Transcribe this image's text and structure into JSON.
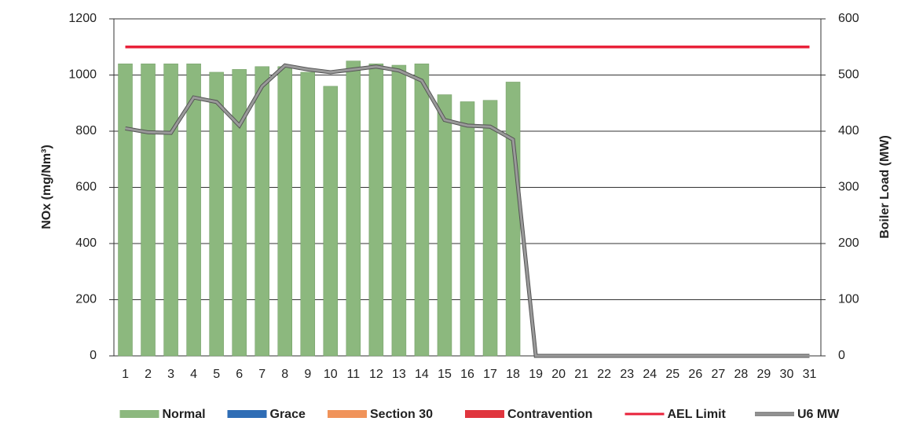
{
  "chart_data": {
    "type": "bar",
    "categories": [
      "1",
      "2",
      "3",
      "4",
      "5",
      "6",
      "7",
      "8",
      "9",
      "10",
      "11",
      "12",
      "13",
      "14",
      "15",
      "16",
      "17",
      "18",
      "19",
      "20",
      "21",
      "22",
      "23",
      "24",
      "25",
      "26",
      "27",
      "28",
      "29",
      "30",
      "31"
    ],
    "y_label": "NOx (mg/Nm³)",
    "y2_label": "Boiler Load (MW)",
    "ylim": [
      0,
      1200
    ],
    "yticks": [
      0,
      200,
      400,
      600,
      800,
      1000,
      1200
    ],
    "y2lim": [
      0,
      600
    ],
    "y2ticks": [
      0,
      100,
      200,
      300,
      400,
      500,
      600
    ],
    "grid": true,
    "legend": "bottom",
    "series": [
      {
        "name": "Normal",
        "type": "bar",
        "color": "#8cb87e",
        "values": [
          1040,
          1040,
          1040,
          1040,
          1010,
          1020,
          1030,
          1030,
          1010,
          960,
          1050,
          1040,
          1035,
          1040,
          930,
          905,
          910,
          975,
          null,
          null,
          null,
          null,
          null,
          null,
          null,
          null,
          null,
          null,
          null,
          null,
          null
        ]
      },
      {
        "name": "Grace",
        "type": "bar",
        "color": "#2f6db5",
        "values": [
          null,
          null,
          null,
          null,
          null,
          null,
          null,
          null,
          null,
          null,
          null,
          null,
          null,
          null,
          null,
          null,
          null,
          null,
          null,
          null,
          null,
          null,
          null,
          null,
          null,
          null,
          null,
          null,
          null,
          null,
          null
        ]
      },
      {
        "name": "Section 30",
        "type": "bar",
        "color": "#f0935a",
        "values": [
          null,
          null,
          null,
          null,
          null,
          null,
          null,
          null,
          null,
          null,
          null,
          null,
          null,
          null,
          null,
          null,
          null,
          null,
          null,
          null,
          null,
          null,
          null,
          null,
          null,
          null,
          null,
          null,
          null,
          null,
          null
        ]
      },
      {
        "name": "Contravention",
        "type": "bar",
        "color": "#e0353e",
        "values": [
          null,
          null,
          null,
          null,
          null,
          null,
          null,
          null,
          null,
          null,
          null,
          null,
          null,
          null,
          null,
          null,
          null,
          null,
          null,
          null,
          null,
          null,
          null,
          null,
          null,
          null,
          null,
          null,
          null,
          null,
          null
        ]
      },
      {
        "name": "AEL Limit",
        "type": "line",
        "color": "#e8213a",
        "values": [
          1100,
          1100,
          1100,
          1100,
          1100,
          1100,
          1100,
          1100,
          1100,
          1100,
          1100,
          1100,
          1100,
          1100,
          1100,
          1100,
          1100,
          1100,
          1100,
          1100,
          1100,
          1100,
          1100,
          1100,
          1100,
          1100,
          1100,
          1100,
          1100,
          1100,
          1100
        ]
      },
      {
        "name": "U6 MW",
        "type": "line",
        "color": "#9a9a9a",
        "axis": "y2",
        "values": [
          405,
          398,
          397,
          460,
          452,
          410,
          480,
          517,
          510,
          505,
          510,
          515,
          508,
          490,
          420,
          410,
          408,
          385,
          0,
          0,
          0,
          0,
          0,
          0,
          0,
          0,
          0,
          0,
          0,
          0,
          0
        ]
      }
    ]
  }
}
